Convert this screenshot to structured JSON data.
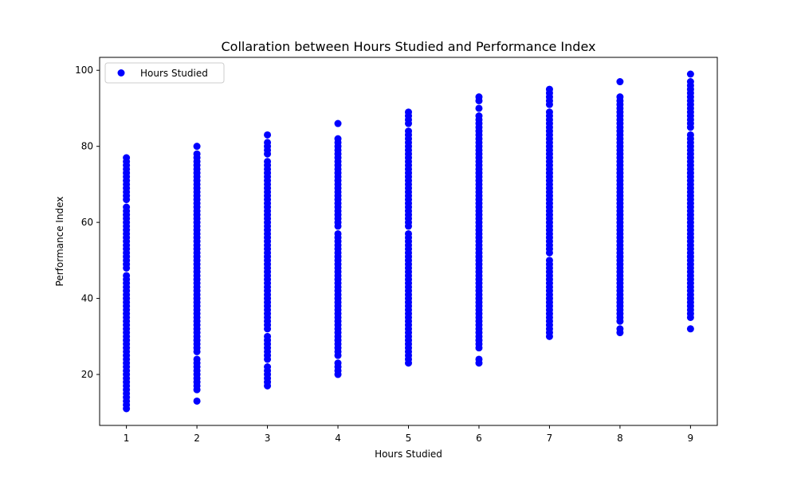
{
  "chart_data": {
    "type": "scatter",
    "title": "Collaration between Hours Studied and Performance Index",
    "xlabel": "Hours Studied",
    "ylabel": "Performance Index",
    "xlim": [
      0.62,
      9.38
    ],
    "ylim": [
      6.6,
      103.4
    ],
    "xticks": [
      1,
      2,
      3,
      4,
      5,
      6,
      7,
      8,
      9
    ],
    "yticks": [
      20,
      40,
      60,
      80,
      100
    ],
    "grid": false,
    "legend": {
      "position": "top-left",
      "entries": [
        "Hours Studied"
      ]
    },
    "color": "#0000ff",
    "series": [
      {
        "name": "Hours Studied",
        "color": "#0000ff",
        "points_by_x": [
          {
            "x": 1,
            "y": [
              11,
              12,
              13,
              14,
              15,
              16,
              17,
              18,
              19,
              20,
              21,
              22,
              23,
              24,
              25,
              26,
              27,
              28,
              29,
              30,
              31,
              32,
              33,
              34,
              35,
              36,
              37,
              38,
              39,
              40,
              41,
              42,
              43,
              44,
              45,
              46,
              48,
              49,
              50,
              51,
              52,
              53,
              54,
              55,
              56,
              57,
              58,
              59,
              60,
              61,
              62,
              63,
              64,
              66,
              67,
              68,
              69,
              70,
              71,
              72,
              73,
              74,
              75,
              76,
              77
            ]
          },
          {
            "x": 2,
            "y": [
              13,
              16,
              17,
              18,
              19,
              20,
              21,
              22,
              23,
              24,
              26,
              27,
              28,
              29,
              30,
              31,
              32,
              33,
              34,
              35,
              36,
              37,
              38,
              39,
              40,
              41,
              42,
              43,
              44,
              45,
              46,
              47,
              48,
              49,
              50,
              51,
              52,
              53,
              54,
              55,
              56,
              57,
              58,
              59,
              60,
              61,
              62,
              63,
              64,
              65,
              66,
              67,
              68,
              69,
              70,
              71,
              72,
              73,
              74,
              75,
              76,
              77,
              78,
              80
            ]
          },
          {
            "x": 3,
            "y": [
              17,
              18,
              19,
              20,
              21,
              22,
              24,
              25,
              26,
              27,
              28,
              29,
              30,
              32,
              33,
              34,
              35,
              36,
              37,
              38,
              39,
              40,
              41,
              42,
              43,
              44,
              45,
              46,
              47,
              48,
              49,
              50,
              51,
              52,
              53,
              54,
              55,
              56,
              57,
              58,
              59,
              60,
              61,
              62,
              63,
              64,
              65,
              66,
              67,
              68,
              69,
              70,
              71,
              72,
              73,
              74,
              75,
              76,
              78,
              79,
              80,
              81,
              83
            ]
          },
          {
            "x": 4,
            "y": [
              20,
              21,
              22,
              23,
              25,
              26,
              27,
              28,
              29,
              30,
              31,
              32,
              33,
              34,
              35,
              36,
              37,
              38,
              39,
              40,
              41,
              42,
              43,
              44,
              45,
              46,
              47,
              48,
              49,
              50,
              51,
              52,
              53,
              54,
              55,
              56,
              57,
              59,
              60,
              61,
              62,
              63,
              64,
              65,
              66,
              67,
              68,
              69,
              70,
              71,
              72,
              73,
              74,
              75,
              76,
              77,
              78,
              79,
              80,
              81,
              82,
              86
            ]
          },
          {
            "x": 5,
            "y": [
              23,
              24,
              25,
              26,
              27,
              28,
              29,
              30,
              31,
              32,
              33,
              34,
              35,
              36,
              37,
              38,
              39,
              40,
              41,
              42,
              43,
              44,
              45,
              46,
              47,
              48,
              49,
              50,
              51,
              52,
              53,
              54,
              55,
              56,
              57,
              59,
              60,
              61,
              62,
              63,
              64,
              65,
              66,
              67,
              68,
              69,
              70,
              71,
              72,
              73,
              74,
              75,
              76,
              77,
              78,
              79,
              80,
              81,
              82,
              83,
              84,
              86,
              87,
              88,
              89
            ]
          },
          {
            "x": 6,
            "y": [
              23,
              24,
              27,
              28,
              29,
              30,
              31,
              32,
              33,
              34,
              35,
              36,
              37,
              38,
              39,
              40,
              41,
              42,
              43,
              44,
              45,
              46,
              47,
              48,
              49,
              50,
              51,
              52,
              53,
              54,
              55,
              56,
              57,
              58,
              59,
              60,
              61,
              62,
              63,
              64,
              65,
              66,
              67,
              68,
              69,
              70,
              71,
              72,
              73,
              74,
              75,
              76,
              77,
              78,
              79,
              80,
              81,
              82,
              83,
              84,
              85,
              86,
              87,
              88,
              90,
              92,
              93
            ]
          },
          {
            "x": 7,
            "y": [
              30,
              31,
              32,
              33,
              34,
              35,
              36,
              37,
              38,
              39,
              40,
              41,
              42,
              43,
              44,
              45,
              46,
              47,
              48,
              49,
              50,
              52,
              53,
              54,
              55,
              56,
              57,
              58,
              59,
              60,
              61,
              62,
              63,
              64,
              65,
              66,
              67,
              68,
              69,
              70,
              71,
              72,
              73,
              74,
              75,
              76,
              77,
              78,
              79,
              80,
              81,
              82,
              83,
              84,
              85,
              86,
              87,
              88,
              89,
              91,
              92,
              93,
              94,
              95
            ]
          },
          {
            "x": 8,
            "y": [
              31,
              32,
              34,
              35,
              36,
              37,
              38,
              39,
              40,
              41,
              42,
              43,
              44,
              45,
              46,
              47,
              48,
              49,
              50,
              51,
              52,
              53,
              54,
              55,
              56,
              57,
              58,
              59,
              60,
              61,
              62,
              63,
              64,
              65,
              66,
              67,
              68,
              69,
              70,
              71,
              72,
              73,
              74,
              75,
              76,
              77,
              78,
              79,
              80,
              81,
              82,
              83,
              84,
              85,
              86,
              87,
              88,
              89,
              90,
              91,
              92,
              93,
              97
            ]
          },
          {
            "x": 9,
            "y": [
              32,
              35,
              36,
              37,
              38,
              39,
              40,
              41,
              42,
              43,
              44,
              45,
              46,
              47,
              48,
              49,
              50,
              51,
              52,
              53,
              54,
              55,
              56,
              57,
              58,
              59,
              60,
              61,
              62,
              63,
              64,
              65,
              66,
              67,
              68,
              69,
              70,
              71,
              72,
              73,
              74,
              75,
              76,
              77,
              78,
              79,
              80,
              81,
              82,
              83,
              85,
              86,
              87,
              88,
              89,
              90,
              91,
              92,
              93,
              94,
              95,
              96,
              97,
              99
            ]
          }
        ]
      }
    ]
  }
}
